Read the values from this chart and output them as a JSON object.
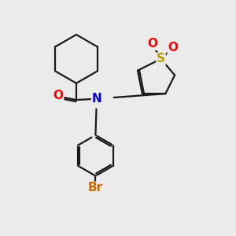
{
  "bg_color": "#ebebeb",
  "bond_color": "#1a1a1a",
  "bond_width": 1.6,
  "atom_labels": {
    "O_carbonyl": {
      "text": "O",
      "color": "#ff0000",
      "fontsize": 11,
      "fontweight": "bold"
    },
    "N": {
      "text": "N",
      "color": "#0000cc",
      "fontsize": 11,
      "fontweight": "bold"
    },
    "S": {
      "text": "S",
      "color": "#b8a000",
      "fontsize": 11,
      "fontweight": "bold"
    },
    "O_s1": {
      "text": "O",
      "color": "#ff0000",
      "fontsize": 11,
      "fontweight": "bold"
    },
    "O_s2": {
      "text": "O",
      "color": "#ff0000",
      "fontsize": 11,
      "fontweight": "bold"
    },
    "Br": {
      "text": "Br",
      "color": "#cc6600",
      "fontsize": 11,
      "fontweight": "bold"
    }
  },
  "figsize": [
    3.0,
    3.0
  ],
  "dpi": 100
}
